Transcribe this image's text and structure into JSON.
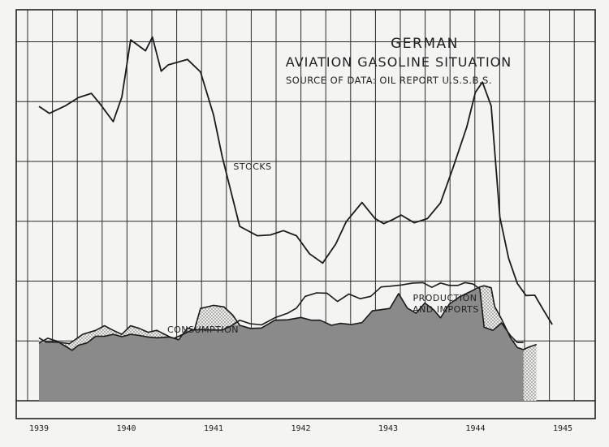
{
  "chart_data": {
    "type": "area",
    "title": "GERMAN",
    "subtitle": "AVIATION GASOLINE SITUATION",
    "source": "SOURCE OF DATA: OIL REPORT U.S.S.B.S.",
    "x_ticks": [
      "1939",
      "1940",
      "1941",
      "1942",
      "1943",
      "1944",
      "1945"
    ],
    "xlim": [
      1939.0,
      1945.05
    ],
    "ylim": [
      0,
      100
    ],
    "grid": true,
    "annotations": [
      "STOCKS",
      "CONSUMPTION",
      "PRODUCTION",
      "AND IMPORTS"
    ],
    "series": [
      {
        "name": "STOCKS",
        "values": [
          [
            1939.0,
            75.3
          ],
          [
            1939.12,
            73.5
          ],
          [
            1939.3,
            75.4
          ],
          [
            1939.45,
            77.5
          ],
          [
            1939.6,
            78.6
          ],
          [
            1939.7,
            75.9
          ],
          [
            1939.85,
            71.4
          ],
          [
            1939.95,
            77.7
          ],
          [
            1940.05,
            92.3
          ],
          [
            1940.22,
            89.5
          ],
          [
            1940.3,
            93.0
          ],
          [
            1940.4,
            84.3
          ],
          [
            1940.48,
            85.9
          ],
          [
            1940.7,
            87.3
          ],
          [
            1940.85,
            84.1
          ],
          [
            1941.0,
            73.1
          ],
          [
            1941.1,
            62.4
          ],
          [
            1941.3,
            44.6
          ],
          [
            1941.5,
            42.2
          ],
          [
            1941.65,
            42.4
          ],
          [
            1941.8,
            43.5
          ],
          [
            1941.95,
            42.2
          ],
          [
            1942.1,
            37.6
          ],
          [
            1942.25,
            35.2
          ],
          [
            1942.4,
            40.1
          ],
          [
            1942.52,
            45.8
          ],
          [
            1942.7,
            50.7
          ],
          [
            1942.85,
            46.6
          ],
          [
            1942.95,
            45.3
          ],
          [
            1943.05,
            46.3
          ],
          [
            1943.15,
            47.5
          ],
          [
            1943.3,
            45.5
          ],
          [
            1943.45,
            46.6
          ],
          [
            1943.6,
            50.6
          ],
          [
            1943.75,
            60.0
          ],
          [
            1943.9,
            70.0
          ],
          [
            1944.0,
            78.9
          ],
          [
            1944.08,
            81.5
          ],
          [
            1944.18,
            75.4
          ],
          [
            1944.28,
            47.0
          ],
          [
            1944.38,
            36.4
          ],
          [
            1944.48,
            30.0
          ],
          [
            1944.58,
            26.9
          ],
          [
            1944.68,
            27.0
          ],
          [
            1944.78,
            23.2
          ],
          [
            1944.88,
            19.5
          ]
        ]
      },
      {
        "name": "CONSUMPTION",
        "values": [
          [
            1939.0,
            16.1
          ],
          [
            1939.08,
            15.0
          ],
          [
            1939.2,
            15.0
          ],
          [
            1939.35,
            14.6
          ],
          [
            1939.5,
            17.0
          ],
          [
            1939.65,
            18.0
          ],
          [
            1939.75,
            19.2
          ],
          [
            1939.85,
            18.0
          ],
          [
            1939.95,
            17.0
          ],
          [
            1940.05,
            19.2
          ],
          [
            1940.15,
            18.5
          ],
          [
            1940.25,
            17.5
          ],
          [
            1940.35,
            18.0
          ],
          [
            1940.5,
            16.3
          ],
          [
            1940.6,
            15.6
          ],
          [
            1940.7,
            18.6
          ],
          [
            1940.78,
            18.1
          ],
          [
            1940.85,
            23.6
          ],
          [
            1941.0,
            24.4
          ],
          [
            1941.12,
            24.0
          ],
          [
            1941.22,
            21.9
          ],
          [
            1941.3,
            19.3
          ],
          [
            1941.42,
            18.5
          ],
          [
            1941.55,
            18.6
          ],
          [
            1941.7,
            20.6
          ],
          [
            1941.85,
            20.7
          ],
          [
            1942.0,
            21.3
          ],
          [
            1942.12,
            20.6
          ],
          [
            1942.22,
            20.6
          ],
          [
            1942.35,
            19.3
          ],
          [
            1942.45,
            19.8
          ],
          [
            1942.58,
            19.5
          ],
          [
            1942.7,
            20.0
          ],
          [
            1942.82,
            23.0
          ],
          [
            1942.92,
            23.3
          ],
          [
            1943.02,
            23.6
          ],
          [
            1943.12,
            27.4
          ],
          [
            1943.22,
            23.7
          ],
          [
            1943.32,
            22.4
          ],
          [
            1943.42,
            25.0
          ],
          [
            1943.52,
            23.3
          ],
          [
            1943.6,
            21.2
          ],
          [
            1943.7,
            24.7
          ],
          [
            1943.82,
            26.6
          ],
          [
            1943.95,
            28.0
          ],
          [
            1944.05,
            29.1
          ],
          [
            1944.1,
            29.4
          ],
          [
            1944.18,
            28.9
          ],
          [
            1944.22,
            24.1
          ],
          [
            1944.3,
            20.9
          ],
          [
            1944.4,
            16.2
          ],
          [
            1944.48,
            13.6
          ],
          [
            1944.55,
            13.1
          ],
          [
            1944.62,
            13.8
          ],
          [
            1944.7,
            14.4
          ]
        ]
      },
      {
        "name": "PRODUCTION AND IMPORTS",
        "values": [
          [
            1939.0,
            14.7
          ],
          [
            1939.1,
            16.0
          ],
          [
            1939.2,
            15.3
          ],
          [
            1939.3,
            14.0
          ],
          [
            1939.38,
            12.9
          ],
          [
            1939.45,
            14.2
          ],
          [
            1939.55,
            14.8
          ],
          [
            1939.65,
            16.5
          ],
          [
            1939.75,
            16.5
          ],
          [
            1939.85,
            17.0
          ],
          [
            1939.95,
            16.4
          ],
          [
            1940.05,
            17.0
          ],
          [
            1940.15,
            16.7
          ],
          [
            1940.25,
            16.3
          ],
          [
            1940.35,
            16.1
          ],
          [
            1940.48,
            16.3
          ],
          [
            1940.55,
            16.0
          ],
          [
            1940.65,
            17.0
          ],
          [
            1940.75,
            18.1
          ],
          [
            1940.85,
            18.2
          ],
          [
            1941.0,
            18.1
          ],
          [
            1941.1,
            18.1
          ],
          [
            1941.2,
            19.1
          ],
          [
            1941.3,
            20.6
          ],
          [
            1941.42,
            19.7
          ],
          [
            1941.55,
            19.4
          ],
          [
            1941.7,
            21.2
          ],
          [
            1941.85,
            22.4
          ],
          [
            1941.95,
            23.7
          ],
          [
            1942.05,
            26.7
          ],
          [
            1942.18,
            27.6
          ],
          [
            1942.3,
            27.5
          ],
          [
            1942.42,
            25.4
          ],
          [
            1942.55,
            27.3
          ],
          [
            1942.68,
            26.1
          ],
          [
            1942.8,
            26.7
          ],
          [
            1942.92,
            29.1
          ],
          [
            1943.02,
            29.3
          ],
          [
            1943.15,
            29.6
          ],
          [
            1943.28,
            30.1
          ],
          [
            1943.4,
            30.2
          ],
          [
            1943.5,
            29.0
          ],
          [
            1943.6,
            30.1
          ],
          [
            1943.7,
            29.5
          ],
          [
            1943.8,
            29.5
          ],
          [
            1943.88,
            30.2
          ],
          [
            1943.97,
            29.9
          ],
          [
            1944.05,
            28.6
          ],
          [
            1944.1,
            18.8
          ],
          [
            1944.2,
            18.0
          ],
          [
            1944.3,
            19.9
          ],
          [
            1944.4,
            16.7
          ],
          [
            1944.48,
            14.9
          ],
          [
            1944.55,
            14.9
          ]
        ]
      }
    ]
  }
}
